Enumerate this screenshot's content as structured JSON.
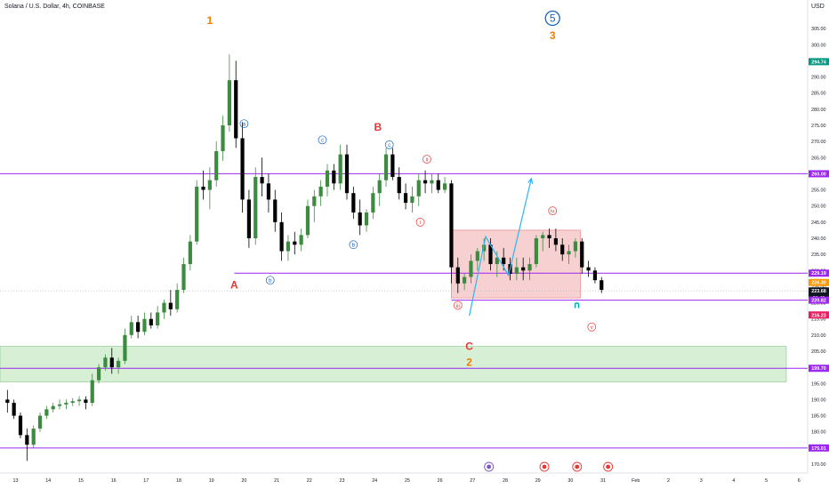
{
  "header": {
    "title": "Solana / U.S. Dollar, 4h, COINBASE"
  },
  "chart_data": {
    "type": "candlestick",
    "symbol": "Solana / U.S. Dollar",
    "interval": "4h",
    "exchange": "COINBASE",
    "currency": "USD",
    "ylim": [
      168,
      312
    ],
    "y_ticks": [
      170,
      175,
      180,
      185,
      190,
      195,
      200,
      205,
      210,
      215,
      220,
      225,
      230,
      235,
      240,
      245,
      250,
      255,
      260,
      265,
      270,
      275,
      280,
      285,
      290,
      295,
      300,
      305
    ],
    "x_ticks": [
      "13",
      "14",
      "15",
      "16",
      "17",
      "18",
      "19",
      "20",
      "21",
      "22",
      "23",
      "24",
      "25",
      "26",
      "27",
      "28",
      "29",
      "30",
      "31",
      "Feb",
      "2",
      "3",
      "4",
      "5",
      "6"
    ],
    "price_tags": [
      {
        "label": "294.74",
        "value": 294.74,
        "color": "#089981"
      },
      {
        "label": "260.00",
        "value": 260.0,
        "color": "#9c27f0"
      },
      {
        "label": "229.19",
        "value": 229.19,
        "color": "#9c27f0"
      },
      {
        "label": "226.30",
        "value": 226.3,
        "color": "#ff9800"
      },
      {
        "label": "223.68",
        "value": 223.68,
        "color": "#131722"
      },
      {
        "label": "20:49",
        "value": 221.6,
        "color": "#131722"
      },
      {
        "label": "220.82",
        "value": 220.82,
        "color": "#9c27f0"
      },
      {
        "label": "216.23",
        "value": 216.23,
        "color": "#e91e63"
      },
      {
        "label": "199.70",
        "value": 199.7,
        "color": "#9c27f0"
      },
      {
        "label": "175.01",
        "value": 175.01,
        "color": "#9c27f0"
      }
    ],
    "levels": [
      {
        "label": "260.00",
        "value": 260.0
      },
      {
        "label": "229.19",
        "value": 229.19
      },
      {
        "label": "220.82",
        "value": 220.82
      },
      {
        "label": "199.70",
        "value": 199.7
      },
      {
        "label": "175.01",
        "value": 175.01
      }
    ],
    "zones": [
      {
        "kind": "range",
        "from": 221.5,
        "to": 242.5,
        "color": "#f4c2c2"
      },
      {
        "kind": "demand",
        "from": 195.5,
        "to": 206.5,
        "color": "#cdebc9"
      }
    ],
    "projection_path": [
      [
        26.9,
        216.0
      ],
      [
        27.4,
        240.5
      ],
      [
        28.1,
        228.5
      ],
      [
        28.8,
        258.5
      ]
    ],
    "wave_labels": [
      {
        "text": "1",
        "day": 18.95,
        "price": 307.5,
        "color": "#f57c00",
        "style": "plain"
      },
      {
        "text": "A",
        "day": 19.7,
        "price": 225.5,
        "color": "#e53935",
        "style": "plain"
      },
      {
        "text": "B",
        "day": 24.1,
        "price": 274.5,
        "color": "#e53935",
        "style": "plain"
      },
      {
        "text": "C",
        "day": 26.9,
        "price": 206.5,
        "color": "#e53935",
        "style": "plain"
      },
      {
        "text": "2",
        "day": 26.9,
        "price": 201.5,
        "color": "#f57c00",
        "style": "plain"
      },
      {
        "text": "3",
        "day": 29.45,
        "price": 302.8,
        "color": "#f57c00",
        "style": "plain"
      },
      {
        "text": "5",
        "day": 29.45,
        "price": 308.2,
        "color": "#1565c0",
        "style": "circle"
      },
      {
        "text": "a",
        "day": 20.0,
        "price": 275.5,
        "color": "#1565c0",
        "style": "circle"
      },
      {
        "text": "b",
        "day": 20.8,
        "price": 227.0,
        "color": "#1565c0",
        "style": "circle"
      },
      {
        "text": "c",
        "day": 22.4,
        "price": 270.5,
        "color": "#1565c0",
        "style": "circle"
      },
      {
        "text": "b",
        "day": 23.35,
        "price": 238.0,
        "color": "#1565c0",
        "style": "circle"
      },
      {
        "text": "c",
        "day": 24.45,
        "price": 269.0,
        "color": "#1565c0",
        "style": "circle"
      },
      {
        "text": "i",
        "day": 25.4,
        "price": 245.0,
        "color": "#e53935",
        "style": "circle"
      },
      {
        "text": "ii",
        "day": 25.6,
        "price": 264.5,
        "color": "#e53935",
        "style": "circle"
      },
      {
        "text": "iii",
        "day": 26.55,
        "price": 219.2,
        "color": "#e53935",
        "style": "circle"
      },
      {
        "text": "iv",
        "day": 29.45,
        "price": 248.5,
        "color": "#e53935",
        "style": "circle"
      },
      {
        "text": "v",
        "day": 30.65,
        "price": 212.5,
        "color": "#e53935",
        "style": "circle"
      }
    ],
    "candles": [
      [
        12.75,
        190,
        193,
        186,
        189
      ],
      [
        12.95,
        189,
        190,
        184,
        185
      ],
      [
        13.15,
        185,
        186,
        178,
        179
      ],
      [
        13.35,
        179,
        181,
        171,
        176
      ],
      [
        13.55,
        176,
        182,
        175,
        181
      ],
      [
        13.75,
        181,
        186,
        180,
        185
      ],
      [
        13.95,
        185,
        188,
        184,
        187
      ],
      [
        14.15,
        187,
        189,
        186,
        188
      ],
      [
        14.35,
        188,
        190,
        187,
        188.5
      ],
      [
        14.55,
        188.5,
        190,
        187,
        189
      ],
      [
        14.75,
        189,
        190.5,
        188,
        189.5
      ],
      [
        14.95,
        189.5,
        191,
        188,
        190
      ],
      [
        15.15,
        190,
        191,
        187,
        189
      ],
      [
        15.35,
        189,
        198,
        188,
        196
      ],
      [
        15.55,
        196,
        201,
        195,
        200
      ],
      [
        15.75,
        200,
        204,
        199,
        203
      ],
      [
        15.95,
        203,
        206,
        198,
        200
      ],
      [
        16.15,
        200,
        203,
        198,
        202
      ],
      [
        16.35,
        202,
        212,
        201,
        210
      ],
      [
        16.55,
        210,
        216,
        209,
        214
      ],
      [
        16.75,
        214,
        216,
        209,
        211
      ],
      [
        16.95,
        211,
        217,
        210,
        215
      ],
      [
        17.15,
        215,
        217,
        212,
        213
      ],
      [
        17.35,
        213,
        219,
        212,
        217
      ],
      [
        17.55,
        217,
        221,
        215,
        220
      ],
      [
        17.75,
        220,
        224,
        216,
        218
      ],
      [
        17.95,
        218,
        226,
        217,
        224
      ],
      [
        18.15,
        224,
        234,
        223,
        232
      ],
      [
        18.35,
        232,
        241,
        230,
        239
      ],
      [
        18.55,
        239,
        258,
        238,
        256
      ],
      [
        18.75,
        256,
        261,
        252,
        255
      ],
      [
        18.95,
        255,
        262,
        249,
        258
      ],
      [
        19.15,
        258,
        270,
        256,
        267
      ],
      [
        19.35,
        267,
        278,
        264,
        275
      ],
      [
        19.55,
        275,
        297,
        273,
        289
      ],
      [
        19.75,
        289,
        295,
        268,
        271
      ],
      [
        19.95,
        271,
        276,
        248,
        252
      ],
      [
        20.15,
        252,
        255,
        237,
        240
      ],
      [
        20.35,
        240,
        262,
        238,
        259
      ],
      [
        20.55,
        259,
        265,
        253,
        257
      ],
      [
        20.75,
        257,
        260,
        248,
        252
      ],
      [
        20.95,
        252,
        255,
        242,
        245
      ],
      [
        21.15,
        245,
        248,
        233,
        236
      ],
      [
        21.35,
        236,
        241,
        233,
        239
      ],
      [
        21.55,
        239,
        242,
        235,
        238
      ],
      [
        21.75,
        238,
        243,
        236,
        241
      ],
      [
        21.95,
        241,
        252,
        240,
        250
      ],
      [
        22.15,
        250,
        255,
        245,
        253
      ],
      [
        22.35,
        253,
        258,
        250,
        256
      ],
      [
        22.55,
        256,
        263,
        253,
        261
      ],
      [
        22.75,
        261,
        263,
        255,
        257
      ],
      [
        22.95,
        257,
        269,
        255,
        266
      ],
      [
        23.15,
        266,
        269,
        252,
        254
      ],
      [
        23.35,
        254,
        256,
        246,
        248
      ],
      [
        23.55,
        248,
        252,
        241,
        244
      ],
      [
        23.75,
        244,
        249,
        242,
        248
      ],
      [
        23.95,
        248,
        256,
        246,
        254
      ],
      [
        24.15,
        254,
        260,
        250,
        258
      ],
      [
        24.35,
        258,
        268,
        256,
        266
      ],
      [
        24.55,
        266,
        268,
        258,
        259
      ],
      [
        24.75,
        259,
        262,
        252,
        254
      ],
      [
        24.95,
        254,
        257,
        249,
        251
      ],
      [
        25.15,
        251,
        256,
        248,
        253
      ],
      [
        25.35,
        253,
        260,
        250,
        258
      ],
      [
        25.55,
        258,
        261,
        254,
        257
      ],
      [
        25.75,
        257,
        260,
        254,
        258
      ],
      [
        25.95,
        258,
        260,
        254,
        255
      ],
      [
        26.15,
        255,
        259,
        254,
        257
      ],
      [
        26.35,
        257,
        258,
        226,
        231
      ],
      [
        26.55,
        231,
        234,
        223,
        226
      ],
      [
        26.75,
        226,
        229,
        224,
        228
      ],
      [
        26.95,
        228,
        235,
        226,
        233
      ],
      [
        27.15,
        233,
        237,
        230,
        236
      ],
      [
        27.35,
        236,
        240,
        233,
        238
      ],
      [
        27.55,
        238,
        240,
        230,
        232
      ],
      [
        27.75,
        232,
        236,
        228,
        234
      ],
      [
        27.95,
        234,
        237,
        230,
        232
      ],
      [
        28.15,
        232,
        234,
        227,
        229
      ],
      [
        28.35,
        229,
        234,
        227,
        231
      ],
      [
        28.55,
        231,
        234,
        227,
        230
      ],
      [
        28.75,
        230,
        234,
        227,
        232
      ],
      [
        28.95,
        232,
        241,
        231,
        240
      ],
      [
        29.15,
        240,
        242,
        236,
        241
      ],
      [
        29.35,
        241,
        243,
        237,
        240
      ],
      [
        29.55,
        240,
        243,
        236,
        238
      ],
      [
        29.75,
        238,
        240,
        233,
        235
      ],
      [
        29.95,
        235,
        238,
        232,
        236
      ],
      [
        30.15,
        236,
        240,
        234,
        239
      ],
      [
        30.35,
        239,
        240,
        229,
        231
      ],
      [
        30.55,
        231,
        233,
        228,
        230
      ],
      [
        30.75,
        230,
        231,
        226,
        227
      ],
      [
        30.95,
        227,
        228,
        223,
        224
      ]
    ]
  }
}
